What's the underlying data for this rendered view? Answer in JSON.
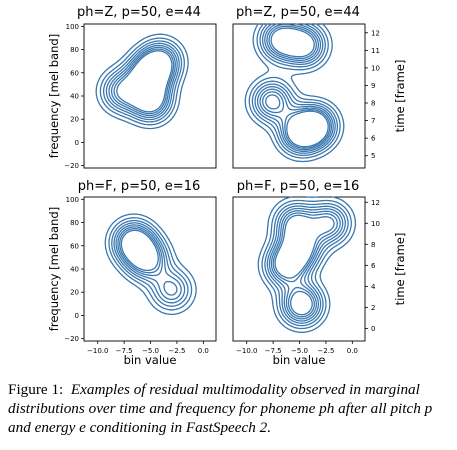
{
  "figure": {
    "ylabel_left": "frequency [mel band]",
    "ylabel_right": "time [frame]",
    "xlabel": "bin value",
    "x_ticks": [
      "−10.0",
      "−7.5",
      "−5.0",
      "−2.5",
      "0.0"
    ],
    "left_y_ticks": [
      "100",
      "80",
      "60",
      "40",
      "20",
      "0",
      "−20"
    ],
    "top_right_y_ticks": [
      "12",
      "11",
      "10",
      "9",
      "8",
      "7",
      "6",
      "5"
    ],
    "bottom_right_y_ticks": [
      "12",
      "10",
      "8",
      "6",
      "4",
      "2",
      "0"
    ],
    "line_color": "#3a78b0"
  },
  "chart_data": [
    {
      "type": "contour",
      "title": "ph=Z, p=50, e=44",
      "xlim": [
        -11.3,
        1.2
      ],
      "ylim": [
        -22,
        102
      ],
      "xlabel": "",
      "ylabel": "frequency [mel band]",
      "blobs": [
        {
          "x": -7.7,
          "y": 44,
          "peak": 0.65
        },
        {
          "x": -5.2,
          "y": 58,
          "peak": 0.9
        },
        {
          "x": -5.0,
          "y": 36,
          "peak": 0.85
        },
        {
          "x": -4.0,
          "y": 70,
          "peak": 0.7
        }
      ]
    },
    {
      "type": "contour",
      "title": "ph=Z, p=50, e=44",
      "xlim": [
        -11.3,
        1.2
      ],
      "ylim": [
        4.3,
        12.5
      ],
      "xlabel": "",
      "ylabel": "time [frame]",
      "blobs": [
        {
          "x": -6.8,
          "y": 11.6,
          "peak": 0.8
        },
        {
          "x": -4.5,
          "y": 11.3,
          "peak": 0.8
        },
        {
          "x": -7.6,
          "y": 8.1,
          "peak": 0.75
        },
        {
          "x": -3.5,
          "y": 6.7,
          "peak": 0.9
        },
        {
          "x": -5.0,
          "y": 6.3,
          "peak": 0.8
        }
      ]
    },
    {
      "type": "contour",
      "title": "ph=F, p=50, e=16",
      "xlim": [
        -11.3,
        1.2
      ],
      "ylim": [
        -22,
        102
      ],
      "xlabel": "bin value",
      "ylabel": "frequency [mel band]",
      "blobs": [
        {
          "x": -6.6,
          "y": 63,
          "peak": 0.9
        },
        {
          "x": -5.3,
          "y": 48,
          "peak": 0.75
        },
        {
          "x": -3.0,
          "y": 22,
          "peak": 0.55
        }
      ]
    },
    {
      "type": "contour",
      "title": "ph=F, p=50, e=16",
      "xlim": [
        -11.3,
        1.2
      ],
      "ylim": [
        -1.2,
        12.5
      ],
      "xlabel": "bin value",
      "ylabel": "time [frame]",
      "blobs": [
        {
          "x": -4.8,
          "y": 2.3,
          "peak": 0.9
        },
        {
          "x": -6.3,
          "y": 6.0,
          "peak": 0.8
        },
        {
          "x": -4.9,
          "y": 7.6,
          "peak": 0.75
        },
        {
          "x": -5.4,
          "y": 10.0,
          "peak": 0.7
        },
        {
          "x": -2.2,
          "y": 10.0,
          "peak": 0.7
        }
      ]
    }
  ],
  "caption": {
    "label": "Figure 1:",
    "text": "Examples of residual multimodality observed in marginal distributions over time and frequency for phoneme ph after all pitch p and energy e conditioning in FastSpeech 2."
  }
}
